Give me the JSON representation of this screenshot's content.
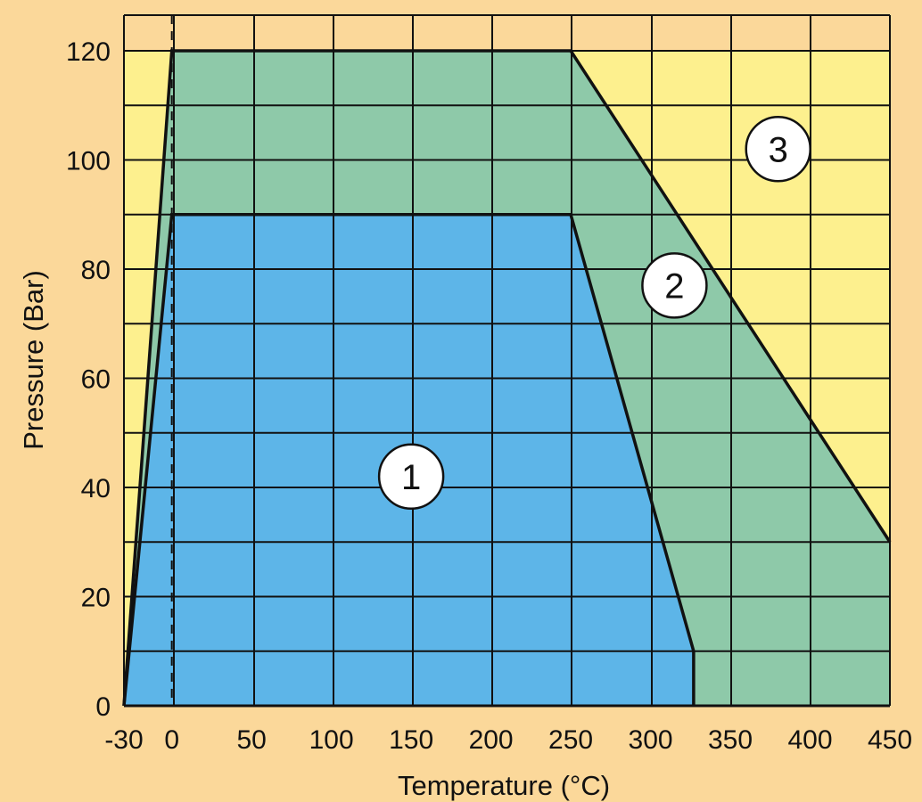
{
  "chart_data": {
    "type": "area",
    "xlabel": "Temperature (°C)",
    "ylabel": "Pressure (Bar)",
    "xlim": [
      -30,
      450
    ],
    "ylim": [
      0,
      120
    ],
    "x_ticks": [
      "-30",
      "0",
      "50",
      "100",
      "150",
      "200",
      "250",
      "300",
      "350",
      "400",
      "450"
    ],
    "x_tick_values": [
      -30,
      0,
      50,
      100,
      150,
      200,
      250,
      300,
      350,
      400,
      450
    ],
    "y_ticks": [
      "0",
      "20",
      "40",
      "60",
      "80",
      "100",
      "120"
    ],
    "y_tick_values": [
      0,
      20,
      40,
      60,
      80,
      100,
      120
    ],
    "grid": true,
    "reference_line": {
      "x": 0,
      "style": "dashed"
    },
    "regions": [
      {
        "label": "1",
        "polygon": [
          [
            -30,
            0
          ],
          [
            0,
            90
          ],
          [
            250,
            90
          ],
          [
            327,
            10
          ],
          [
            327,
            0
          ]
        ],
        "color": "#5db5e8",
        "label_at": [
          150,
          42
        ]
      },
      {
        "label": "2",
        "polygon": [
          [
            -30,
            0
          ],
          [
            0,
            120
          ],
          [
            250,
            120
          ],
          [
            450,
            30
          ],
          [
            450,
            0
          ]
        ],
        "color": "#8ec9a9",
        "label_at": [
          315,
          77
        ]
      },
      {
        "label": "3",
        "polygon": [
          [
            -30,
            0
          ],
          [
            -30,
            120
          ],
          [
            450,
            120
          ],
          [
            450,
            0
          ]
        ],
        "color": "#fdf08e",
        "label_at": [
          380,
          102
        ]
      }
    ],
    "boundaries": [
      [
        [
          -30,
          0
        ],
        [
          0,
          90
        ],
        [
          250,
          90
        ],
        [
          327,
          10
        ],
        [
          327,
          0
        ]
      ],
      [
        [
          -30,
          0
        ],
        [
          0,
          120
        ],
        [
          250,
          120
        ],
        [
          450,
          30
        ]
      ]
    ]
  }
}
